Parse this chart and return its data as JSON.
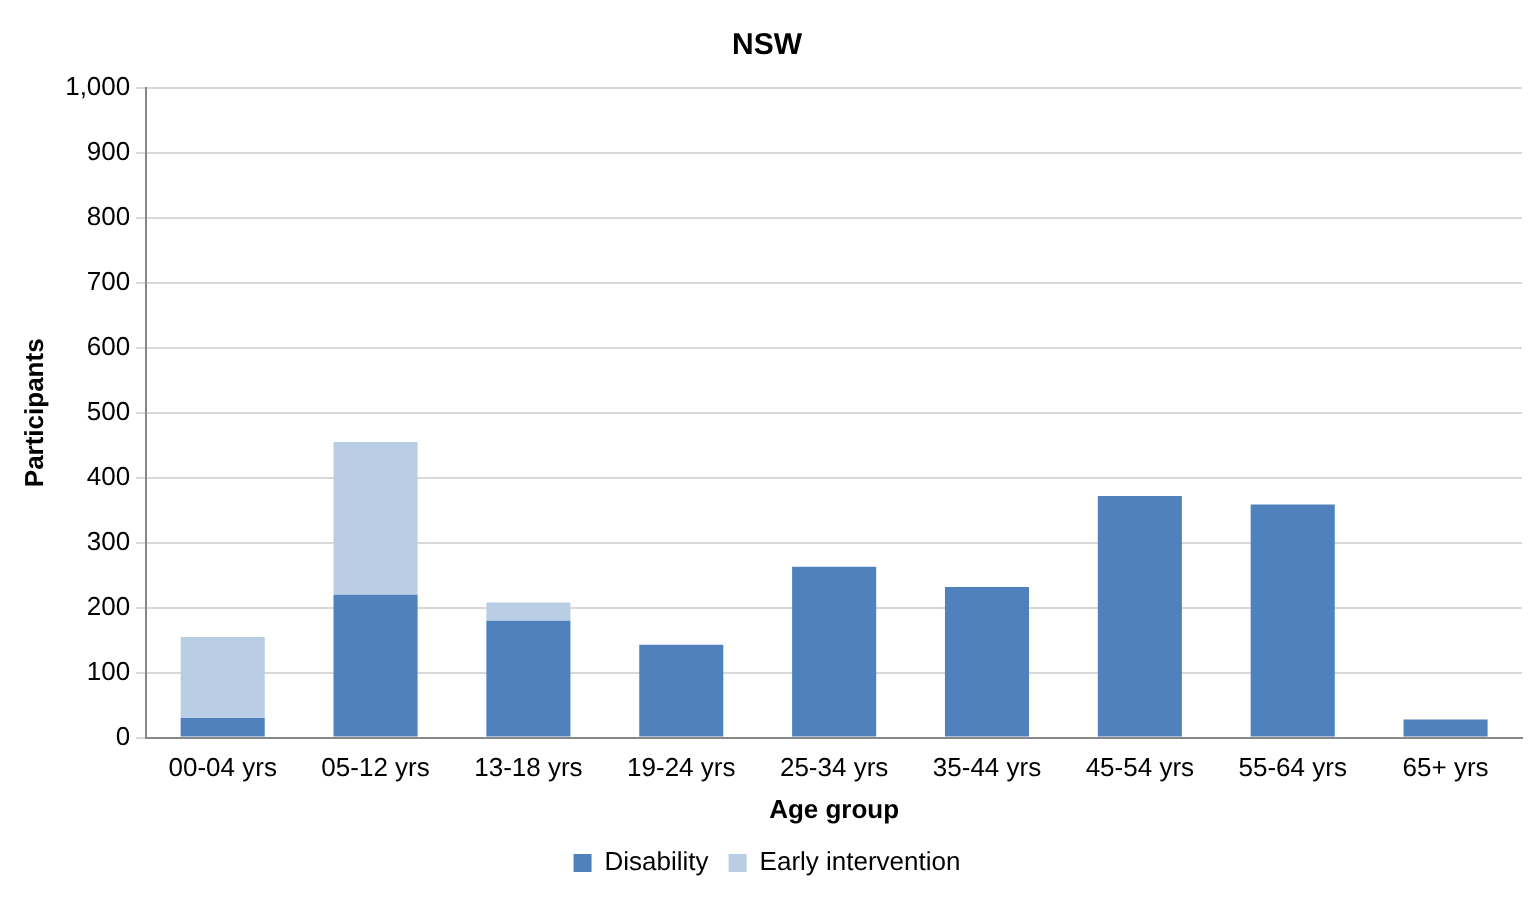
{
  "chart_data": {
    "type": "bar",
    "title": "NSW",
    "xlabel": "Age group",
    "ylabel": "Participants",
    "categories": [
      "00-04 yrs",
      "05-12 yrs",
      "13-18 yrs",
      "19-24 yrs",
      "25-34 yrs",
      "35-44 yrs",
      "45-54 yrs",
      "55-64 yrs",
      "65+ yrs"
    ],
    "series": [
      {
        "name": "Disability",
        "color": "#4f81bd",
        "values": [
          30,
          220,
          180,
          143,
          263,
          232,
          372,
          359,
          28
        ]
      },
      {
        "name": "Early intervention",
        "color": "#b9cde5",
        "values": [
          125,
          235,
          28,
          0,
          null,
          0,
          null,
          0,
          0
        ]
      }
    ],
    "stacked": true,
    "ylim": [
      0,
      1000
    ],
    "yticks": [
      0,
      {
        "value": 100,
        "label": "100"
      },
      200,
      300,
      400,
      500,
      600,
      700,
      800,
      900,
      {
        "value": 1000,
        "label": "1,000"
      }
    ],
    "grid": "y",
    "legend": "bottom"
  }
}
